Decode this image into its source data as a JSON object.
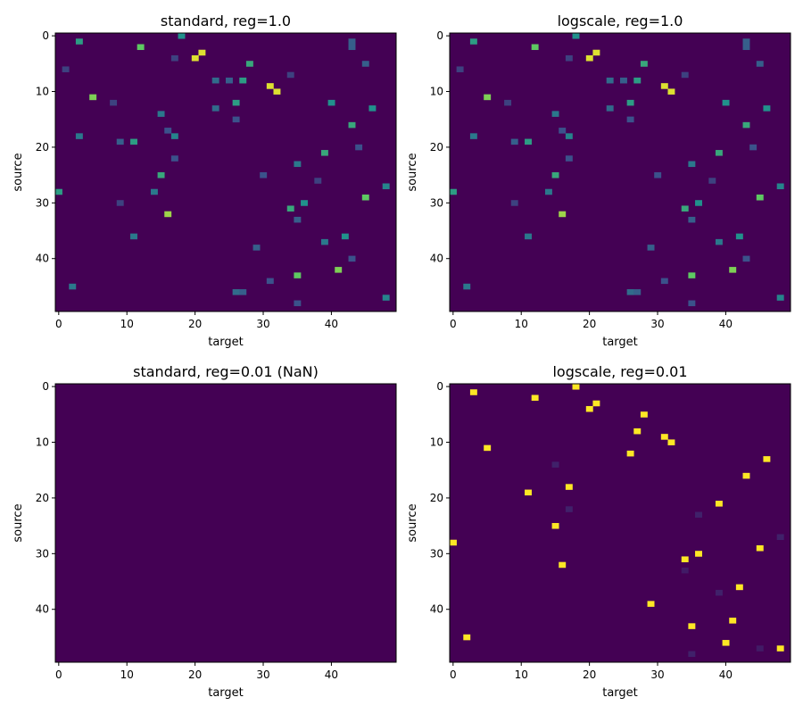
{
  "colormap": {
    "name": "viridis",
    "stops": [
      "#440154",
      "#3b528b",
      "#21918c",
      "#5ec962",
      "#fde725"
    ]
  },
  "chart_data": [
    {
      "type": "heatmap",
      "title": "standard, reg=1.0",
      "xlabel": "target",
      "ylabel": "source",
      "xlim": [
        0,
        49
      ],
      "ylim": [
        0,
        49
      ],
      "xticks": [
        0,
        10,
        20,
        30,
        40
      ],
      "yticks": [
        0,
        10,
        20,
        30,
        40
      ],
      "y_inverted": true,
      "background_value": 0,
      "cells": [
        [
          0,
          18,
          0.5
        ],
        [
          1,
          3,
          0.55
        ],
        [
          2,
          12,
          0.75
        ],
        [
          3,
          21,
          0.95
        ],
        [
          4,
          20,
          0.95
        ],
        [
          5,
          28,
          0.6
        ],
        [
          8,
          27,
          0.55
        ],
        [
          8,
          23,
          0.35
        ],
        [
          8,
          25,
          0.3
        ],
        [
          9,
          31,
          0.95
        ],
        [
          10,
          32,
          0.95
        ],
        [
          11,
          5,
          0.8
        ],
        [
          12,
          26,
          0.55
        ],
        [
          12,
          40,
          0.5
        ],
        [
          13,
          23,
          0.35
        ],
        [
          13,
          46,
          0.5
        ],
        [
          14,
          15,
          0.4
        ],
        [
          16,
          43,
          0.6
        ],
        [
          18,
          3,
          0.4
        ],
        [
          18,
          17,
          0.45
        ],
        [
          19,
          11,
          0.55
        ],
        [
          19,
          9,
          0.3
        ],
        [
          21,
          39,
          0.6
        ],
        [
          22,
          17,
          0.25
        ],
        [
          23,
          35,
          0.4
        ],
        [
          25,
          15,
          0.6
        ],
        [
          27,
          48,
          0.45
        ],
        [
          28,
          0,
          0.55
        ],
        [
          28,
          14,
          0.4
        ],
        [
          29,
          45,
          0.75
        ],
        [
          30,
          36,
          0.5
        ],
        [
          31,
          34,
          0.6
        ],
        [
          32,
          16,
          0.85
        ],
        [
          36,
          11,
          0.4
        ],
        [
          36,
          42,
          0.5
        ],
        [
          37,
          39,
          0.4
        ],
        [
          42,
          41,
          0.8
        ],
        [
          43,
          35,
          0.75
        ],
        [
          45,
          2,
          0.4
        ],
        [
          46,
          26,
          0.35
        ],
        [
          47,
          48,
          0.45
        ],
        [
          1,
          43,
          0.3
        ],
        [
          2,
          43,
          0.3
        ],
        [
          5,
          45,
          0.3
        ],
        [
          6,
          1,
          0.2
        ],
        [
          15,
          26,
          0.25
        ],
        [
          17,
          16,
          0.25
        ],
        [
          20,
          44,
          0.25
        ],
        [
          25,
          30,
          0.25
        ],
        [
          33,
          35,
          0.3
        ],
        [
          38,
          29,
          0.3
        ],
        [
          40,
          43,
          0.25
        ],
        [
          44,
          31,
          0.25
        ],
        [
          46,
          27,
          0.3
        ],
        [
          48,
          35,
          0.25
        ],
        [
          4,
          17,
          0.2
        ],
        [
          7,
          34,
          0.2
        ],
        [
          12,
          8,
          0.2
        ],
        [
          26,
          38,
          0.2
        ],
        [
          30,
          9,
          0.2
        ]
      ]
    },
    {
      "type": "heatmap",
      "title": "logscale, reg=1.0",
      "xlabel": "target",
      "ylabel": "source",
      "xlim": [
        0,
        49
      ],
      "ylim": [
        0,
        49
      ],
      "xticks": [
        0,
        10,
        20,
        30,
        40
      ],
      "yticks": [
        0,
        10,
        20,
        30,
        40
      ],
      "y_inverted": true,
      "background_value": 0,
      "cells": [
        [
          0,
          18,
          0.5
        ],
        [
          1,
          3,
          0.55
        ],
        [
          2,
          12,
          0.75
        ],
        [
          3,
          21,
          0.95
        ],
        [
          4,
          20,
          0.95
        ],
        [
          5,
          28,
          0.6
        ],
        [
          8,
          27,
          0.55
        ],
        [
          8,
          23,
          0.35
        ],
        [
          8,
          25,
          0.3
        ],
        [
          9,
          31,
          0.95
        ],
        [
          10,
          32,
          0.95
        ],
        [
          11,
          5,
          0.8
        ],
        [
          12,
          26,
          0.55
        ],
        [
          12,
          40,
          0.5
        ],
        [
          13,
          23,
          0.35
        ],
        [
          13,
          46,
          0.5
        ],
        [
          14,
          15,
          0.4
        ],
        [
          16,
          43,
          0.6
        ],
        [
          18,
          3,
          0.4
        ],
        [
          18,
          17,
          0.45
        ],
        [
          19,
          11,
          0.55
        ],
        [
          19,
          9,
          0.3
        ],
        [
          21,
          39,
          0.6
        ],
        [
          22,
          17,
          0.25
        ],
        [
          23,
          35,
          0.4
        ],
        [
          25,
          15,
          0.6
        ],
        [
          27,
          48,
          0.45
        ],
        [
          28,
          0,
          0.55
        ],
        [
          28,
          14,
          0.4
        ],
        [
          29,
          45,
          0.75
        ],
        [
          30,
          36,
          0.5
        ],
        [
          31,
          34,
          0.6
        ],
        [
          32,
          16,
          0.85
        ],
        [
          36,
          11,
          0.4
        ],
        [
          36,
          42,
          0.5
        ],
        [
          37,
          39,
          0.4
        ],
        [
          42,
          41,
          0.8
        ],
        [
          43,
          35,
          0.75
        ],
        [
          45,
          2,
          0.4
        ],
        [
          46,
          26,
          0.35
        ],
        [
          47,
          48,
          0.45
        ],
        [
          1,
          43,
          0.3
        ],
        [
          2,
          43,
          0.3
        ],
        [
          5,
          45,
          0.3
        ],
        [
          6,
          1,
          0.2
        ],
        [
          15,
          26,
          0.25
        ],
        [
          17,
          16,
          0.25
        ],
        [
          20,
          44,
          0.25
        ],
        [
          25,
          30,
          0.25
        ],
        [
          33,
          35,
          0.3
        ],
        [
          38,
          29,
          0.3
        ],
        [
          40,
          43,
          0.25
        ],
        [
          44,
          31,
          0.25
        ],
        [
          46,
          27,
          0.3
        ],
        [
          48,
          35,
          0.25
        ],
        [
          4,
          17,
          0.2
        ],
        [
          7,
          34,
          0.2
        ],
        [
          12,
          8,
          0.2
        ],
        [
          26,
          38,
          0.2
        ],
        [
          30,
          9,
          0.2
        ]
      ]
    },
    {
      "type": "heatmap",
      "title": "standard, reg=0.01  (NaN)",
      "xlabel": "target",
      "ylabel": "source",
      "xlim": [
        0,
        49
      ],
      "ylim": [
        0,
        49
      ],
      "xticks": [
        0,
        10,
        20,
        30,
        40
      ],
      "yticks": [
        0,
        10,
        20,
        30,
        40
      ],
      "y_inverted": true,
      "background_value": 0,
      "cells": []
    },
    {
      "type": "heatmap",
      "title": "logscale, reg=0.01",
      "xlabel": "target",
      "ylabel": "source",
      "xlim": [
        0,
        49
      ],
      "ylim": [
        0,
        49
      ],
      "xticks": [
        0,
        10,
        20,
        30,
        40
      ],
      "yticks": [
        0,
        10,
        20,
        30,
        40
      ],
      "y_inverted": true,
      "background_value": 0,
      "cells": [
        [
          0,
          18,
          1
        ],
        [
          1,
          3,
          1
        ],
        [
          2,
          12,
          1
        ],
        [
          3,
          21,
          1
        ],
        [
          4,
          20,
          1
        ],
        [
          5,
          28,
          1
        ],
        [
          8,
          27,
          1
        ],
        [
          9,
          31,
          1
        ],
        [
          10,
          32,
          1
        ],
        [
          11,
          5,
          1
        ],
        [
          12,
          26,
          1
        ],
        [
          13,
          46,
          1
        ],
        [
          16,
          43,
          1
        ],
        [
          18,
          17,
          1
        ],
        [
          19,
          11,
          1
        ],
        [
          21,
          39,
          1
        ],
        [
          25,
          15,
          1
        ],
        [
          28,
          0,
          1
        ],
        [
          29,
          45,
          1
        ],
        [
          30,
          36,
          1
        ],
        [
          31,
          34,
          1
        ],
        [
          32,
          16,
          1
        ],
        [
          36,
          42,
          1
        ],
        [
          39,
          29,
          1
        ],
        [
          42,
          41,
          1
        ],
        [
          43,
          35,
          1
        ],
        [
          45,
          2,
          1
        ],
        [
          46,
          40,
          1
        ],
        [
          47,
          48,
          1
        ],
        [
          14,
          15,
          0.1
        ],
        [
          22,
          17,
          0.1
        ],
        [
          23,
          36,
          0.1
        ],
        [
          27,
          48,
          0.1
        ],
        [
          33,
          34,
          0.08
        ],
        [
          37,
          39,
          0.1
        ],
        [
          47,
          45,
          0.08
        ],
        [
          48,
          35,
          0.1
        ]
      ]
    }
  ]
}
